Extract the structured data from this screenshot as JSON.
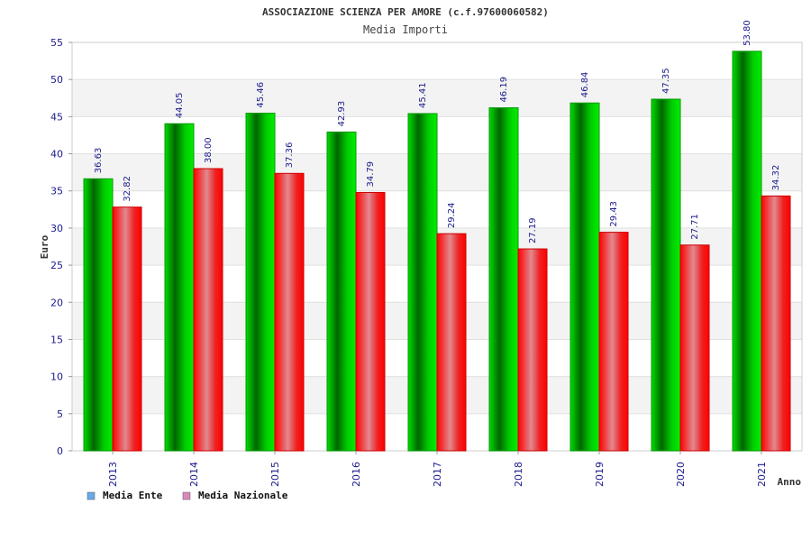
{
  "chart_data": {
    "type": "bar",
    "title": "ASSOCIAZIONE SCIENZA PER AMORE (c.f.97600060582)",
    "subtitle": "Media Importi",
    "xlabel": "Anno",
    "ylabel": "Euro",
    "ylim": [
      0,
      55
    ],
    "yticks": [
      0,
      5,
      10,
      15,
      20,
      25,
      30,
      35,
      40,
      45,
      50,
      55
    ],
    "categories": [
      "2013",
      "2014",
      "2015",
      "2016",
      "2017",
      "2018",
      "2019",
      "2020",
      "2021"
    ],
    "series": [
      {
        "name": "Media Ente",
        "color": "#00cc00",
        "legend_color": "#66aaee",
        "values": [
          36.63,
          44.05,
          45.46,
          42.93,
          45.41,
          46.19,
          46.84,
          47.35,
          53.8
        ],
        "labels": [
          "36.63",
          "44.05",
          "45.46",
          "42.93",
          "45.41",
          "46.19",
          "46.84",
          "47.35",
          "53.80"
        ]
      },
      {
        "name": "Media Nazionale",
        "color": "#ee0000",
        "legend_color": "#dd88bb",
        "values": [
          32.82,
          38.0,
          37.36,
          34.79,
          29.24,
          27.19,
          29.43,
          27.71,
          34.32
        ],
        "labels": [
          "32.82",
          "38.00",
          "37.36",
          "34.79",
          "29.24",
          "27.19",
          "29.43",
          "27.71",
          "34.32"
        ]
      }
    ],
    "grid": true,
    "legend_position": "bottom-left"
  }
}
